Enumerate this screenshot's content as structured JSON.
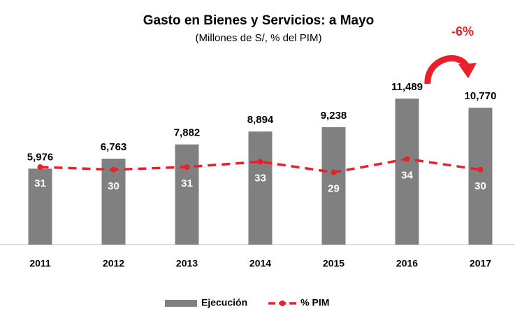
{
  "chart_data": {
    "type": "bar_line",
    "title": "Gasto en Bienes y Servicios: a Mayo",
    "subtitle": "(Millones de S/, % del PIM)",
    "annotation": "-6%",
    "categories": [
      "2011",
      "2012",
      "2013",
      "2014",
      "2015",
      "2016",
      "2017"
    ],
    "series": [
      {
        "name": "Ejecución",
        "type": "bar",
        "color": "#808080",
        "values": [
          5976,
          6763,
          7882,
          8894,
          9238,
          11489,
          10770
        ],
        "value_labels": [
          "5,976",
          "6,763",
          "7,882",
          "8,894",
          "9,238",
          "11,489",
          "10,770"
        ]
      },
      {
        "name": "% PIM",
        "type": "line",
        "axis": "y2",
        "color": "#e8202a",
        "values": [
          31,
          30,
          31,
          33,
          29,
          34,
          30
        ]
      }
    ],
    "ylim": [
      0,
      16000
    ],
    "y2lim": [
      2,
      78
    ]
  }
}
